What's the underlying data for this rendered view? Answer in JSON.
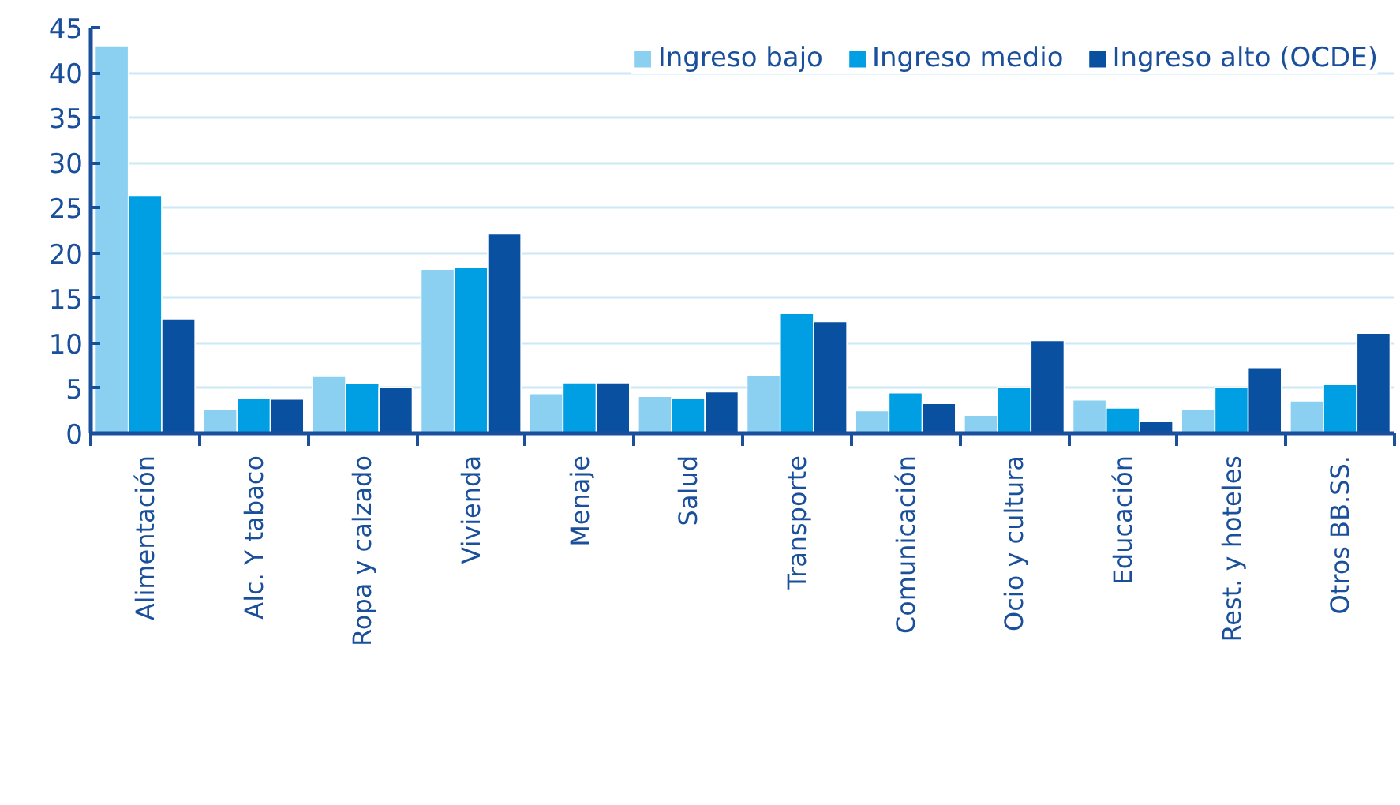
{
  "chart_data": {
    "type": "bar",
    "categories": [
      "Alimentación",
      "Alc. Y tabaco",
      "Ropa y calzado",
      "Vivienda",
      "Menaje",
      "Salud",
      "Transporte",
      "Comunicación",
      "Ocio y cultura",
      "Educación",
      "Rest. y hoteles",
      "Otros BB.SS."
    ],
    "series": [
      {
        "name": "Ingreso bajo",
        "color": "#8bd0f1",
        "values": [
          43,
          2.7,
          6.3,
          18.2,
          4.4,
          4.1,
          6.4,
          2.5,
          2.0,
          3.7,
          2.6,
          3.6
        ]
      },
      {
        "name": "Ingreso medio",
        "color": "#009fe3",
        "values": [
          26.4,
          3.9,
          5.5,
          18.4,
          5.6,
          3.9,
          13.3,
          4.5,
          5.1,
          2.8,
          5.1,
          5.4
        ]
      },
      {
        "name": "Ingreso alto (OCDE)",
        "color": "#0a50a1",
        "values": [
          12.7,
          3.8,
          5.1,
          22.1,
          5.6,
          4.6,
          12.4,
          3.3,
          10.3,
          1.3,
          7.3,
          11.1
        ]
      }
    ],
    "ylim": [
      0,
      45
    ],
    "yticks": [
      0,
      5,
      10,
      15,
      20,
      25,
      30,
      35,
      40,
      45
    ],
    "grid": "y",
    "legend": "top right"
  }
}
